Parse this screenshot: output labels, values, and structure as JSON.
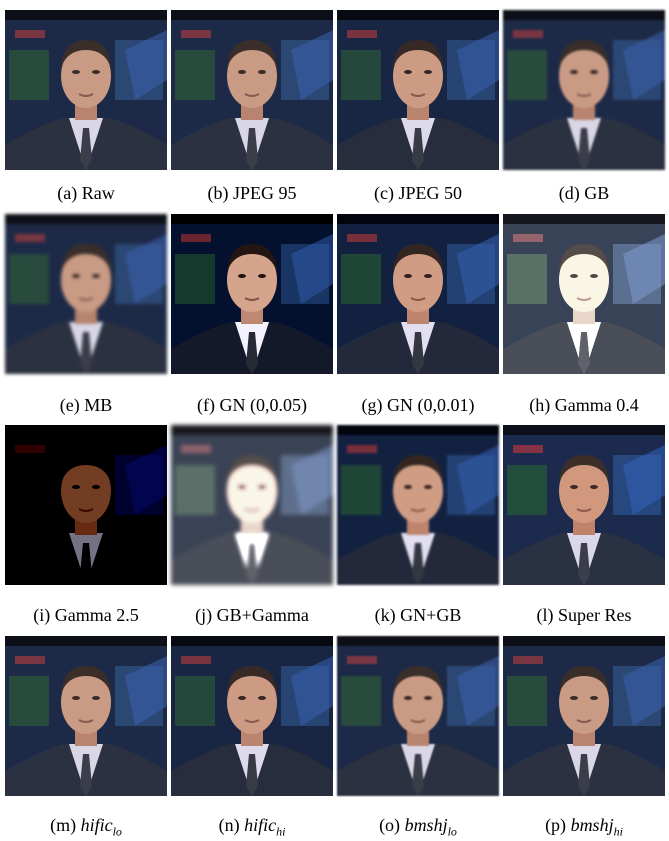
{
  "panels": [
    {
      "label": "(a)",
      "text": "Raw"
    },
    {
      "label": "(b)",
      "text": "JPEG 95"
    },
    {
      "label": "(c)",
      "text": "JPEG 50"
    },
    {
      "label": "(d)",
      "text": "GB"
    },
    {
      "label": "(e)",
      "text": "MB"
    },
    {
      "label": "(f)",
      "text": "GN (0,0.05)"
    },
    {
      "label": "(g)",
      "text": "GN (0,0.01)"
    },
    {
      "label": "(h)",
      "text": "Gamma 0.4"
    },
    {
      "label": "(i)",
      "text": "Gamma 2.5"
    },
    {
      "label": "(j)",
      "text": "GB+Gamma"
    },
    {
      "label": "(k)",
      "text": "GN+GB"
    },
    {
      "label": "(l)",
      "text": "Super Res"
    },
    {
      "label": "(m)",
      "text": "hific",
      "sub": "lo"
    },
    {
      "label": "(n)",
      "text": "hific",
      "sub": "hi"
    },
    {
      "label": "(o)",
      "text": "bmshj",
      "sub": "lo"
    },
    {
      "label": "(p)",
      "text": "bmshj",
      "sub": "hi"
    }
  ]
}
